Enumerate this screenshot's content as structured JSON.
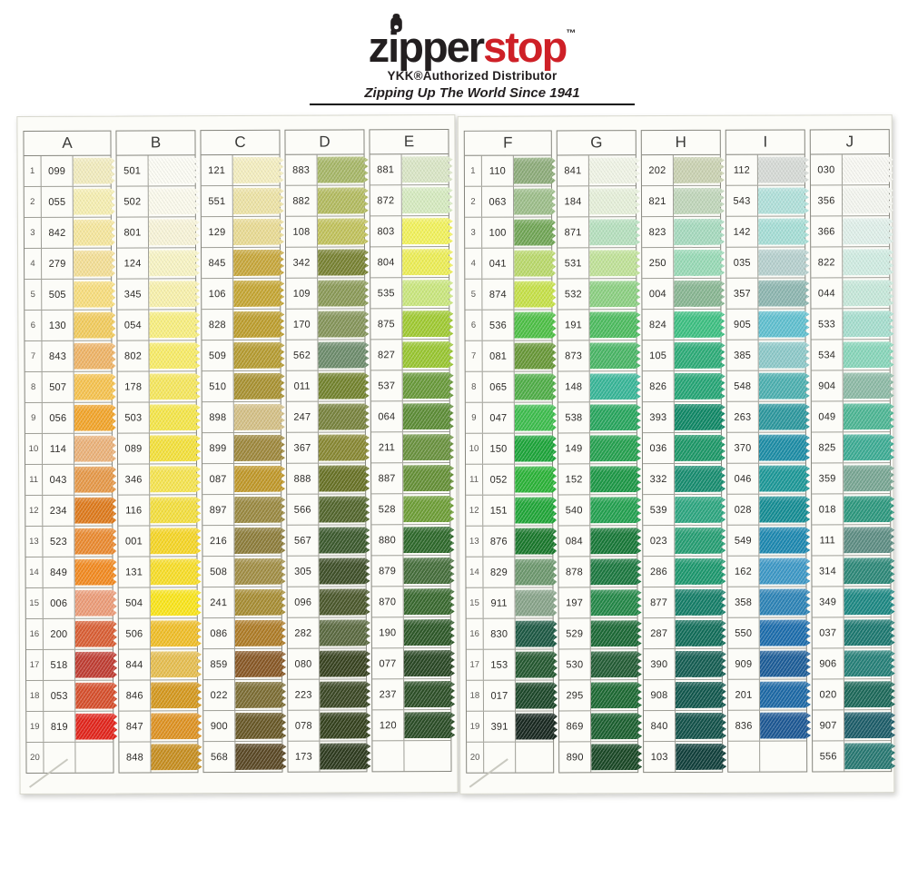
{
  "logo": {
    "brand_zipper": "zipper",
    "brand_stop": "stop",
    "trademark": "™",
    "subtitle": "YKK®Authorized Distributor",
    "tagline": "Zipping Up The World Since 1941",
    "brand_black_color": "#231f20",
    "brand_red_color": "#ce2027"
  },
  "color_chart": {
    "row_count": 20,
    "columns": [
      {
        "letter": "A",
        "numbered": true,
        "rows": [
          {
            "n": 1,
            "code": "099",
            "color": "#F2ECBE"
          },
          {
            "n": 2,
            "code": "055",
            "color": "#F6EFB2"
          },
          {
            "n": 3,
            "code": "842",
            "color": "#F6E79E"
          },
          {
            "n": 4,
            "code": "279",
            "color": "#F4DF96"
          },
          {
            "n": 5,
            "code": "505",
            "color": "#F8DE7E"
          },
          {
            "n": 6,
            "code": "130",
            "color": "#F2CC5E"
          },
          {
            "n": 7,
            "code": "843",
            "color": "#EFB467"
          },
          {
            "n": 8,
            "code": "507",
            "color": "#F6C350"
          },
          {
            "n": 9,
            "code": "056",
            "color": "#F2A52B"
          },
          {
            "n": 10,
            "code": "114",
            "color": "#EBB27A"
          },
          {
            "n": 11,
            "code": "043",
            "color": "#E69949"
          },
          {
            "n": 12,
            "code": "234",
            "color": "#DE7A1C"
          },
          {
            "n": 13,
            "code": "523",
            "color": "#EA8A30"
          },
          {
            "n": 14,
            "code": "849",
            "color": "#F28A20"
          },
          {
            "n": 15,
            "code": "006",
            "color": "#EC9C78"
          },
          {
            "n": 16,
            "code": "200",
            "color": "#D95F35"
          },
          {
            "n": 17,
            "code": "518",
            "color": "#BF3D33"
          },
          {
            "n": 18,
            "code": "053",
            "color": "#D64F2C"
          },
          {
            "n": 19,
            "code": "819",
            "color": "#E2251C"
          },
          {
            "n": 20,
            "code": "",
            "color": ""
          }
        ]
      },
      {
        "letter": "B",
        "numbered": false,
        "rows": [
          {
            "code": "501",
            "color": "#FCFCF4"
          },
          {
            "code": "502",
            "color": "#FBFAEC"
          },
          {
            "code": "801",
            "color": "#F8F4D8"
          },
          {
            "code": "124",
            "color": "#F8F4C4"
          },
          {
            "code": "345",
            "color": "#F8F1AC"
          },
          {
            "code": "054",
            "color": "#F8EF80"
          },
          {
            "code": "802",
            "color": "#F8EC68"
          },
          {
            "code": "178",
            "color": "#F6E75E"
          },
          {
            "code": "503",
            "color": "#F5E64A"
          },
          {
            "code": "089",
            "color": "#F4E13C"
          },
          {
            "code": "346",
            "color": "#F6E450"
          },
          {
            "code": "116",
            "color": "#F4DF3E"
          },
          {
            "code": "001",
            "color": "#F6D626"
          },
          {
            "code": "131",
            "color": "#F8DE28"
          },
          {
            "code": "504",
            "color": "#FAE51A"
          },
          {
            "code": "506",
            "color": "#F0BE28"
          },
          {
            "code": "844",
            "color": "#E6BE50"
          },
          {
            "code": "846",
            "color": "#D4981E"
          },
          {
            "code": "847",
            "color": "#DE9222"
          },
          {
            "code": "848",
            "color": "#C68E20"
          }
        ]
      },
      {
        "letter": "C",
        "numbered": false,
        "rows": [
          {
            "code": "121",
            "color": "#F4EEC0"
          },
          {
            "code": "551",
            "color": "#EDE3A6"
          },
          {
            "code": "129",
            "color": "#E9DB94"
          },
          {
            "code": "845",
            "color": "#C7A73C"
          },
          {
            "code": "106",
            "color": "#C5A634"
          },
          {
            "code": "828",
            "color": "#BD9E2E"
          },
          {
            "code": "509",
            "color": "#B69C32"
          },
          {
            "code": "510",
            "color": "#A99232"
          },
          {
            "code": "898",
            "color": "#D4C086"
          },
          {
            "code": "899",
            "color": "#9E883D"
          },
          {
            "code": "087",
            "color": "#C0982A"
          },
          {
            "code": "897",
            "color": "#9A8941"
          },
          {
            "code": "216",
            "color": "#8D7D3B"
          },
          {
            "code": "508",
            "color": "#A18E45"
          },
          {
            "code": "241",
            "color": "#A78D34"
          },
          {
            "code": "086",
            "color": "#AE7C27"
          },
          {
            "code": "859",
            "color": "#885826"
          },
          {
            "code": "022",
            "color": "#7C6D34"
          },
          {
            "code": "900",
            "color": "#685827"
          },
          {
            "code": "568",
            "color": "#5A4825"
          }
        ]
      },
      {
        "letter": "D",
        "numbered": false,
        "rows": [
          {
            "code": "883",
            "color": "#A7B768"
          },
          {
            "code": "882",
            "color": "#B3BB60"
          },
          {
            "code": "108",
            "color": "#C1C25C"
          },
          {
            "code": "342",
            "color": "#788233"
          },
          {
            "code": "109",
            "color": "#8B9A58"
          },
          {
            "code": "170",
            "color": "#85955A"
          },
          {
            "code": "562",
            "color": "#6D8C6C"
          },
          {
            "code": "011",
            "color": "#73832E"
          },
          {
            "code": "247",
            "color": "#78833E"
          },
          {
            "code": "367",
            "color": "#888833"
          },
          {
            "code": "888",
            "color": "#687226"
          },
          {
            "code": "566",
            "color": "#53662D"
          },
          {
            "code": "567",
            "color": "#3C5A2E"
          },
          {
            "code": "305",
            "color": "#3F5029"
          },
          {
            "code": "096",
            "color": "#4B582C"
          },
          {
            "code": "282",
            "color": "#5A6940"
          },
          {
            "code": "080",
            "color": "#384320"
          },
          {
            "code": "223",
            "color": "#3B4825"
          },
          {
            "code": "078",
            "color": "#35421E"
          },
          {
            "code": "173",
            "color": "#2E3B1F"
          }
        ]
      },
      {
        "letter": "E",
        "numbered": false,
        "rows": [
          {
            "code": "881",
            "color": "#DAE6C6"
          },
          {
            "code": "872",
            "color": "#D6EBC0"
          },
          {
            "code": "803",
            "color": "#F2F25C"
          },
          {
            "code": "804",
            "color": "#EDEE56"
          },
          {
            "code": "535",
            "color": "#CAE77E"
          },
          {
            "code": "875",
            "color": "#A0CA32"
          },
          {
            "code": "827",
            "color": "#99C631"
          },
          {
            "code": "537",
            "color": "#699A3B"
          },
          {
            "code": "064",
            "color": "#5D8D37"
          },
          {
            "code": "211",
            "color": "#6A923F"
          },
          {
            "code": "887",
            "color": "#659037"
          },
          {
            "code": "528",
            "color": "#6E9E37"
          },
          {
            "code": "880",
            "color": "#2E692B"
          },
          {
            "code": "879",
            "color": "#456E3B"
          },
          {
            "code": "870",
            "color": "#39692F"
          },
          {
            "code": "190",
            "color": "#2E5929"
          },
          {
            "code": "077",
            "color": "#2A4825"
          },
          {
            "code": "237",
            "color": "#2D5028"
          },
          {
            "code": "120",
            "color": "#2B4D27"
          },
          {
            "code": "",
            "color": ""
          }
        ]
      },
      {
        "letter": "F",
        "numbered": true,
        "rows": [
          {
            "n": 1,
            "code": "110",
            "color": "#8DAC7A"
          },
          {
            "n": 2,
            "code": "063",
            "color": "#9DBE8A"
          },
          {
            "n": 3,
            "code": "100",
            "color": "#71A656"
          },
          {
            "n": 4,
            "code": "041",
            "color": "#BAD96C"
          },
          {
            "n": 5,
            "code": "874",
            "color": "#C6E148"
          },
          {
            "n": 6,
            "code": "536",
            "color": "#4EC046"
          },
          {
            "n": 7,
            "code": "081",
            "color": "#689838"
          },
          {
            "n": 8,
            "code": "065",
            "color": "#50AE48"
          },
          {
            "n": 9,
            "code": "047",
            "color": "#3DBD4D"
          },
          {
            "n": 10,
            "code": "150",
            "color": "#1DA53A"
          },
          {
            "n": 11,
            "code": "052",
            "color": "#2BB338"
          },
          {
            "n": 12,
            "code": "151",
            "color": "#20A638"
          },
          {
            "n": 13,
            "code": "876",
            "color": "#1A782C"
          },
          {
            "n": 14,
            "code": "829",
            "color": "#6D986E"
          },
          {
            "n": 15,
            "code": "911",
            "color": "#88A48A"
          },
          {
            "n": 16,
            "code": "830",
            "color": "#1D5944"
          },
          {
            "n": 17,
            "code": "153",
            "color": "#255931"
          },
          {
            "n": 18,
            "code": "017",
            "color": "#1D482A"
          },
          {
            "n": 19,
            "code": "391",
            "color": "#182820"
          },
          {
            "n": 20,
            "code": "",
            "color": ""
          }
        ]
      },
      {
        "letter": "G",
        "numbered": false,
        "rows": [
          {
            "code": "841",
            "color": "#F0F4E6"
          },
          {
            "code": "184",
            "color": "#E6F0DA"
          },
          {
            "code": "871",
            "color": "#B6E0BE"
          },
          {
            "code": "531",
            "color": "#C0E298"
          },
          {
            "code": "532",
            "color": "#8CD082"
          },
          {
            "code": "191",
            "color": "#4EBC60"
          },
          {
            "code": "873",
            "color": "#4AB666"
          },
          {
            "code": "148",
            "color": "#38B698"
          },
          {
            "code": "538",
            "color": "#28A65E"
          },
          {
            "code": "149",
            "color": "#26A150"
          },
          {
            "code": "152",
            "color": "#1D9846"
          },
          {
            "code": "540",
            "color": "#23A150"
          },
          {
            "code": "084",
            "color": "#187838"
          },
          {
            "code": "878",
            "color": "#1C7840"
          },
          {
            "code": "197",
            "color": "#248848"
          },
          {
            "code": "529",
            "color": "#1C6936"
          },
          {
            "code": "530",
            "color": "#245D36"
          },
          {
            "code": "295",
            "color": "#1D6933"
          },
          {
            "code": "869",
            "color": "#1C6030"
          },
          {
            "code": "890",
            "color": "#1A4826"
          }
        ]
      },
      {
        "letter": "H",
        "numbered": false,
        "rows": [
          {
            "code": "202",
            "color": "#CAD2B2"
          },
          {
            "code": "821",
            "color": "#C0D6BA"
          },
          {
            "code": "823",
            "color": "#A6DABE"
          },
          {
            "code": "250",
            "color": "#98DAB6"
          },
          {
            "code": "004",
            "color": "#88B692"
          },
          {
            "code": "824",
            "color": "#3DC082"
          },
          {
            "code": "105",
            "color": "#2DAC78"
          },
          {
            "code": "826",
            "color": "#26A676"
          },
          {
            "code": "393",
            "color": "#108866"
          },
          {
            "code": "036",
            "color": "#1D9868"
          },
          {
            "code": "332",
            "color": "#188D70"
          },
          {
            "code": "539",
            "color": "#2DA680"
          },
          {
            "code": "023",
            "color": "#269E73"
          },
          {
            "code": "286",
            "color": "#1D986E"
          },
          {
            "code": "877",
            "color": "#157E68"
          },
          {
            "code": "287",
            "color": "#126E5A"
          },
          {
            "code": "390",
            "color": "#155E53"
          },
          {
            "code": "908",
            "color": "#12584E"
          },
          {
            "code": "840",
            "color": "#13524A"
          },
          {
            "code": "103",
            "color": "#11403C"
          }
        ]
      },
      {
        "letter": "I",
        "numbered": false,
        "rows": [
          {
            "code": "112",
            "color": "#D6DAD6"
          },
          {
            "code": "543",
            "color": "#B0E0DA"
          },
          {
            "code": "142",
            "color": "#A6DED6"
          },
          {
            "code": "035",
            "color": "#B6D0CE"
          },
          {
            "code": "357",
            "color": "#8DB6B0"
          },
          {
            "code": "905",
            "color": "#60C0D0"
          },
          {
            "code": "385",
            "color": "#8DC9C9"
          },
          {
            "code": "548",
            "color": "#4DB0B0"
          },
          {
            "code": "263",
            "color": "#2D989E"
          },
          {
            "code": "370",
            "color": "#1D8DA6"
          },
          {
            "code": "046",
            "color": "#1D9898"
          },
          {
            "code": "028",
            "color": "#158D94"
          },
          {
            "code": "549",
            "color": "#1D88B0"
          },
          {
            "code": "162",
            "color": "#3D98C6"
          },
          {
            "code": "358",
            "color": "#2D83B6"
          },
          {
            "code": "550",
            "color": "#1D6DAC"
          },
          {
            "code": "909",
            "color": "#1D5D98"
          },
          {
            "code": "201",
            "color": "#1D69A6"
          },
          {
            "code": "836",
            "color": "#1D5894"
          },
          {
            "code": "",
            "color": ""
          }
        ]
      },
      {
        "letter": "J",
        "numbered": false,
        "rows": [
          {
            "code": "030",
            "color": "#F8F8F3"
          },
          {
            "code": "356",
            "color": "#F4F6F0"
          },
          {
            "code": "366",
            "color": "#E0F0EA"
          },
          {
            "code": "822",
            "color": "#D0ECE2"
          },
          {
            "code": "044",
            "color": "#C6E8DA"
          },
          {
            "code": "533",
            "color": "#A6DECE"
          },
          {
            "code": "534",
            "color": "#88D6BA"
          },
          {
            "code": "904",
            "color": "#8DBAA6"
          },
          {
            "code": "049",
            "color": "#4DB694"
          },
          {
            "code": "825",
            "color": "#3DAC94"
          },
          {
            "code": "359",
            "color": "#78A693"
          },
          {
            "code": "018",
            "color": "#2D987E"
          },
          {
            "code": "111",
            "color": "#5D8D83"
          },
          {
            "code": "314",
            "color": "#2D8878"
          },
          {
            "code": "349",
            "color": "#1D8883"
          },
          {
            "code": "037",
            "color": "#1D7870"
          },
          {
            "code": "906",
            "color": "#268078"
          },
          {
            "code": "020",
            "color": "#1D695A"
          },
          {
            "code": "907",
            "color": "#1D5D69"
          },
          {
            "code": "556",
            "color": "#287872"
          }
        ]
      }
    ]
  }
}
